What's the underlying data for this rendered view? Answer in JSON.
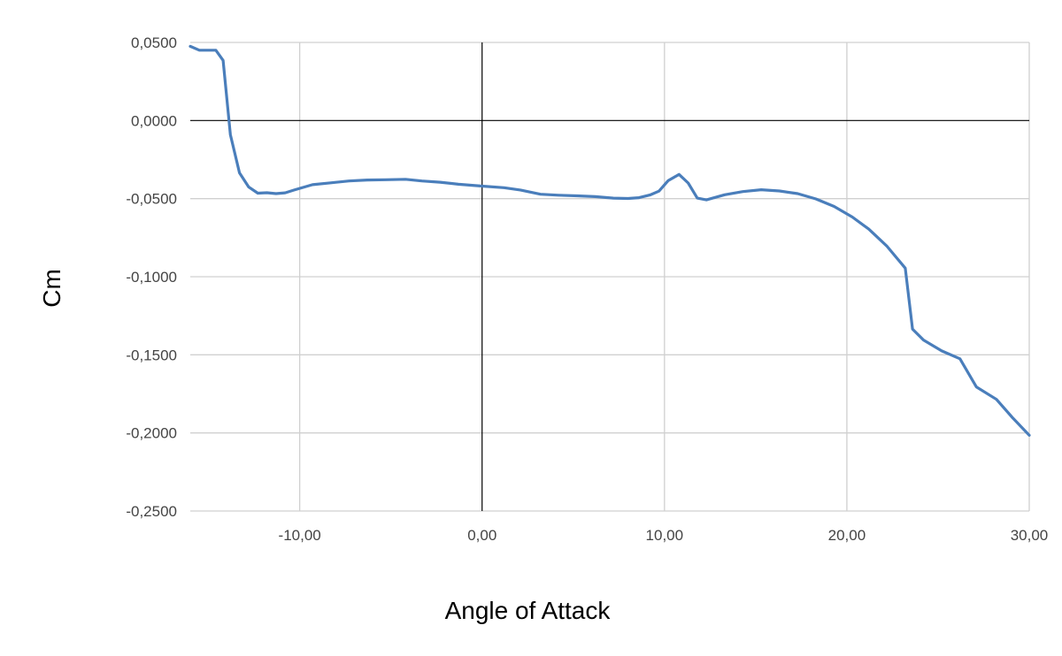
{
  "chart_data": {
    "type": "line",
    "title": "",
    "xlabel": "Angle of Attack",
    "ylabel": "Cm",
    "xlim": [
      -16,
      30
    ],
    "ylim": [
      -0.25,
      0.05
    ],
    "x_ticks": [
      -10,
      0,
      10,
      20,
      30
    ],
    "x_tick_labels": [
      "-10,00",
      "0,00",
      "10,00",
      "20,00",
      "30,00"
    ],
    "y_ticks": [
      0.05,
      0,
      -0.05,
      -0.1,
      -0.15,
      -0.2,
      -0.25
    ],
    "y_tick_labels": [
      "0,0500",
      "0,0000",
      "-0,0500",
      "-0,1000",
      "-0,1500",
      "-0,2000",
      "-0,2500"
    ],
    "grid": true,
    "legend": "none",
    "colors": {
      "series": "#4a7ebb",
      "grid": "#d0d0d0",
      "zero_axis": "#000000"
    },
    "series": [
      {
        "x": [
          -16,
          -15.5,
          -14.6,
          -14.2,
          -13.8,
          -13.3,
          -12.8,
          -12.3,
          -11.8,
          -11.3,
          -10.8,
          -10.3,
          -9.8,
          -9.3,
          -8.3,
          -7.3,
          -6.3,
          -5.3,
          -4.2,
          -3.3,
          -2.3,
          -1.3,
          0,
          1.2,
          2.1,
          3.2,
          4.2,
          5.2,
          6.2,
          7.2,
          8,
          8.6,
          9.2,
          9.7,
          10.2,
          10.8,
          11.3,
          11.8,
          12.3,
          13.3,
          14.3,
          15.3,
          16.3,
          17.3,
          18.3,
          19.3,
          20.3,
          21.2,
          22.2,
          23.2,
          23.6,
          24.2,
          25.2,
          26.2,
          27.1,
          28.2,
          29.1,
          30
        ],
        "y": [
          0.0475,
          0.045,
          0.045,
          0.0385,
          -0.009,
          -0.0335,
          -0.0425,
          -0.0465,
          -0.0462,
          -0.0468,
          -0.0463,
          -0.0445,
          -0.0428,
          -0.0411,
          -0.0399,
          -0.0387,
          -0.0381,
          -0.0379,
          -0.0376,
          -0.0387,
          -0.0395,
          -0.0408,
          -0.042,
          -0.043,
          -0.0445,
          -0.0472,
          -0.0478,
          -0.0482,
          -0.0487,
          -0.0497,
          -0.0499,
          -0.0494,
          -0.0477,
          -0.0452,
          -0.0385,
          -0.0345,
          -0.04,
          -0.0497,
          -0.0508,
          -0.0475,
          -0.0455,
          -0.0443,
          -0.0451,
          -0.0468,
          -0.0502,
          -0.055,
          -0.0618,
          -0.0695,
          -0.0805,
          -0.0945,
          -0.1335,
          -0.1405,
          -0.1475,
          -0.1525,
          -0.1705,
          -0.1785,
          -0.1905,
          -0.2015
        ]
      }
    ]
  }
}
